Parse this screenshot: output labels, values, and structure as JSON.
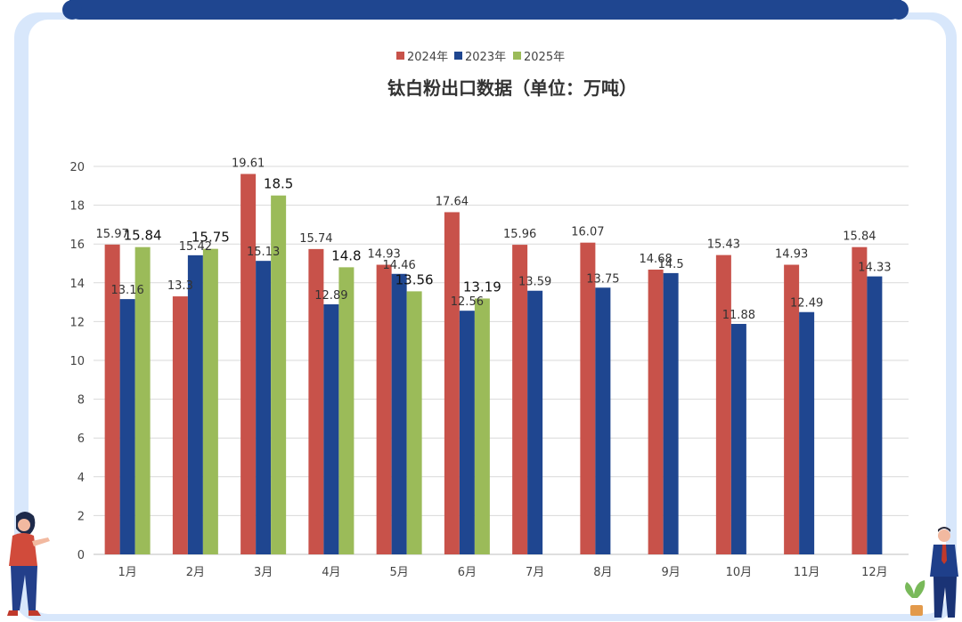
{
  "chart_data": {
    "type": "bar",
    "title": "钛白粉出口数据（单位：万吨）",
    "categories": [
      "1月",
      "2月",
      "3月",
      "4月",
      "5月",
      "6月",
      "7月",
      "8月",
      "9月",
      "10月",
      "11月",
      "12月"
    ],
    "ylim": [
      0,
      20
    ],
    "yticks": [
      "0",
      "2",
      "4",
      "6",
      "8",
      "10",
      "12",
      "14",
      "16",
      "18",
      "20"
    ],
    "grid": true,
    "legend_position": "top",
    "series": [
      {
        "name": "2024年",
        "color": "#c8524a",
        "values": [
          15.97,
          13.3,
          19.61,
          15.74,
          14.93,
          17.64,
          15.96,
          16.07,
          14.68,
          15.43,
          14.93,
          15.84
        ],
        "labels": [
          "15.97",
          "13.3",
          "19.61",
          "15.74",
          "14.93",
          "17.64",
          "15.96",
          "16.07",
          "14.68",
          "15.43",
          "14.93",
          "15.84"
        ]
      },
      {
        "name": "2023年",
        "color": "#1f4690",
        "values": [
          13.16,
          15.42,
          15.13,
          12.89,
          14.46,
          12.56,
          13.59,
          13.75,
          14.5,
          11.88,
          12.49,
          14.33
        ],
        "labels": [
          "13.16",
          "15.42",
          "15.13",
          "12.89",
          "14.46",
          "12.56",
          "13.59",
          "13.75",
          "14.5",
          "11.88",
          "12.49",
          "14.33"
        ]
      },
      {
        "name": "2025年",
        "color": "#9bbb59",
        "values": [
          15.84,
          15.75,
          18.5,
          14.8,
          13.56,
          13.19,
          null,
          null,
          null,
          null,
          null,
          null
        ],
        "labels": [
          "15.84",
          "15.75",
          "18.5",
          "14.8",
          "13.56",
          "13.19",
          "",
          "",
          "",
          "",
          "",
          ""
        ]
      }
    ]
  }
}
